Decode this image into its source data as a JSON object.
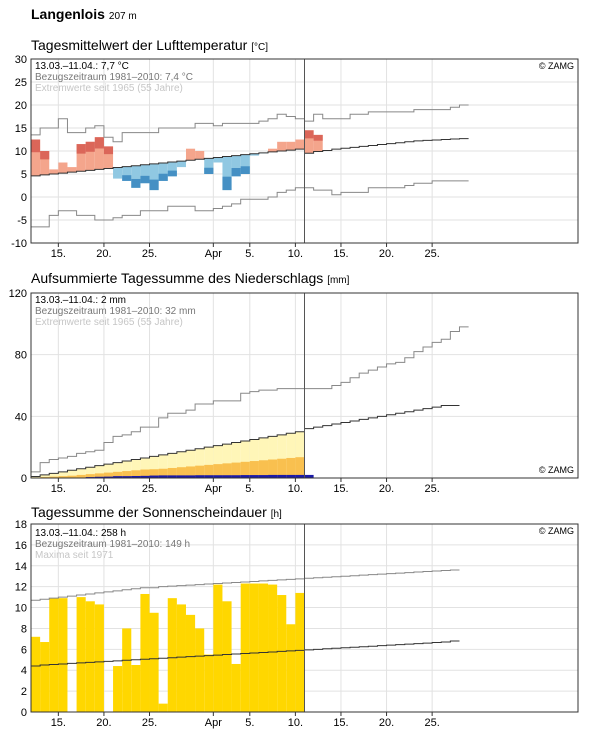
{
  "station": {
    "name": "Langenlois",
    "altitude": "207 m"
  },
  "chart_data": [
    {
      "type": "bar",
      "title": "Tagesmittelwert der Lufttemperatur",
      "unit": "[°C]",
      "copyright": "© ZAMG",
      "info": [
        "13.03.–11.04.: 7,7 °C",
        "Bezugszeitraum 1981–2010: 7,4 °C",
        "Extremwerte seit 1965 (55 Jahre)"
      ],
      "ylim": [
        -10,
        30
      ],
      "yticks": [
        -10,
        -5,
        0,
        5,
        10,
        15,
        20,
        25,
        30
      ],
      "xlim": [
        0,
        60
      ],
      "xticks": [
        {
          "d": 3,
          "label": "15."
        },
        {
          "d": 8,
          "label": "20."
        },
        {
          "d": 13,
          "label": "25."
        },
        {
          "d": 20,
          "label": "Apr"
        },
        {
          "d": 24,
          "label": "5."
        },
        {
          "d": 29,
          "label": "10."
        },
        {
          "d": 34,
          "label": "15."
        },
        {
          "d": 39,
          "label": "20."
        },
        {
          "d": 44,
          "label": "25."
        }
      ],
      "today_index": 30,
      "series": [
        {
          "role": "daily_mean",
          "values": [
            12.5,
            10,
            6,
            7.5,
            6.5,
            11.5,
            12,
            13,
            11,
            4,
            3.5,
            2,
            3,
            1.5,
            3.5,
            4.5,
            6.5,
            10.5,
            10,
            5,
            7.5,
            1.5,
            4.5,
            5,
            9,
            9.5,
            10.5,
            12,
            12,
            12.5,
            14.5,
            13.5
          ]
        },
        {
          "role": "normal",
          "values": [
            4.6,
            4.8,
            5.0,
            5.2,
            5.4,
            5.6,
            5.8,
            6.0,
            6.2,
            6.4,
            6.6,
            6.8,
            7.0,
            7.2,
            7.4,
            7.6,
            7.8,
            8.0,
            8.2,
            8.4,
            8.6,
            8.8,
            9.0,
            9.2,
            9.4,
            9.6,
            9.8,
            10.0,
            10.2,
            10.4,
            9.5,
            9.9,
            10.1,
            10.4,
            10.6,
            10.8,
            11.0,
            11.2,
            11.4,
            11.6,
            11.8,
            12.0,
            12.2,
            12.3,
            12.4,
            12.5,
            12.6,
            12.7
          ]
        },
        {
          "role": "extreme_max",
          "values": [
            13.5,
            15,
            15,
            17,
            14,
            14,
            15,
            15.5,
            13,
            12,
            14,
            14,
            14,
            14,
            15,
            15,
            15,
            15,
            16,
            16,
            15.5,
            16,
            16,
            16,
            16,
            16.5,
            17,
            18,
            17.5,
            17,
            16.5,
            18,
            17,
            17,
            17,
            18,
            18,
            18.5,
            18.5,
            18.5,
            18.5,
            18.5,
            19,
            19,
            19,
            19,
            19.5,
            20
          ]
        },
        {
          "role": "extreme_min",
          "values": [
            -6.5,
            -6.5,
            -4,
            -3,
            -3,
            -4,
            -4,
            -5,
            -5,
            -4.5,
            -4,
            -4,
            -3,
            -3,
            -3,
            -2,
            -2,
            -2,
            -3,
            -3,
            -2.5,
            -2,
            -1.5,
            -0.5,
            -0.5,
            -0.5,
            0,
            1,
            1.5,
            2,
            2,
            1.5,
            1.5,
            0.5,
            1,
            1,
            1,
            2,
            2,
            2,
            2,
            2.5,
            3,
            3,
            3.5,
            3.5,
            3.5,
            3.5
          ]
        }
      ],
      "colors": {
        "warm": "#f4a58c",
        "warm_extra": "#d65a50",
        "cold": "#90c8e2",
        "cold_extra": "#4590c4"
      }
    },
    {
      "type": "area",
      "title": "Aufsummierte Tagessumme des Niederschlags",
      "unit": "[mm]",
      "copyright": "© ZAMG",
      "info": [
        "13.03.–11.04.: 2 mm",
        "Bezugszeitraum 1981–2010: 32 mm",
        "Extremwerte seit 1965 (55 Jahre)"
      ],
      "ylim": [
        0,
        120
      ],
      "yticks": [
        0,
        40,
        80,
        120
      ],
      "xlim": [
        0,
        60
      ],
      "xticks": [
        {
          "d": 3,
          "label": "15."
        },
        {
          "d": 8,
          "label": "20."
        },
        {
          "d": 13,
          "label": "25."
        },
        {
          "d": 20,
          "label": "Apr"
        },
        {
          "d": 24,
          "label": "5."
        },
        {
          "d": 29,
          "label": "10."
        },
        {
          "d": 34,
          "label": "15."
        },
        {
          "d": 39,
          "label": "20."
        },
        {
          "d": 44,
          "label": "25."
        }
      ],
      "today_index": 30,
      "series": [
        {
          "role": "observed_cumulative",
          "values": [
            0,
            0,
            0,
            0,
            0.3,
            0.3,
            0.6,
            0.8,
            0.9,
            1.2,
            1.2,
            1.3,
            1.4,
            1.6,
            1.7,
            1.7,
            1.7,
            1.7,
            1.8,
            1.8,
            1.8,
            1.8,
            1.8,
            1.9,
            1.9,
            1.9,
            2,
            2,
            2,
            2,
            2
          ]
        },
        {
          "role": "normal_cumulative",
          "values": [
            1,
            2,
            3,
            4,
            5,
            6,
            7,
            8,
            9,
            10,
            11,
            12,
            13,
            14,
            15,
            16,
            17,
            18,
            19,
            20,
            21,
            22,
            23,
            24,
            25,
            26,
            27,
            28,
            29,
            30,
            32,
            33,
            34,
            35,
            36,
            37,
            38,
            39,
            40,
            41,
            42,
            43,
            44,
            45,
            46,
            47,
            47
          ]
        },
        {
          "role": "maximum_cumulative",
          "values": [
            4,
            10,
            12,
            13,
            14,
            16,
            17,
            18,
            23,
            27,
            28,
            30,
            33,
            33,
            39,
            42,
            42,
            44,
            48,
            48,
            50,
            50,
            50,
            55,
            56,
            57,
            57,
            58,
            58,
            58,
            58,
            58,
            58,
            60,
            62,
            65,
            68,
            70,
            72,
            74,
            75,
            78,
            82,
            85,
            88,
            90,
            95,
            98
          ]
        },
        {
          "role": "normal_band_inner",
          "values": [
            0.3,
            0.6,
            0.9,
            1.2,
            1.5,
            2,
            2.5,
            3,
            3.5,
            4,
            4.5,
            5,
            5.5,
            5.7,
            6,
            6.5,
            7,
            7.5,
            8,
            8.5,
            9,
            9.5,
            10,
            10.5,
            11,
            11.5,
            12,
            12.5,
            13,
            13.5,
            14
          ]
        }
      ],
      "colors": {
        "band_outer": "#fff6b8",
        "band_inner": "#f9c04f",
        "observed": "#1a1aa8"
      }
    },
    {
      "type": "bar",
      "title": "Tagessumme der Sonnenscheindauer",
      "unit": "[h]",
      "copyright": "© ZAMG",
      "info": [
        "13.03.–11.04.: 258 h",
        "Bezugszeitraum 1981–2010: 149 h",
        "Maxima seit 1971"
      ],
      "ylim": [
        0,
        18
      ],
      "yticks": [
        0,
        2,
        4,
        6,
        8,
        10,
        12,
        14,
        16,
        18
      ],
      "xlim": [
        0,
        60
      ],
      "xticks": [
        {
          "d": 3,
          "label": "15."
        },
        {
          "d": 8,
          "label": "20."
        },
        {
          "d": 13,
          "label": "25."
        },
        {
          "d": 20,
          "label": "Apr"
        },
        {
          "d": 24,
          "label": "5."
        },
        {
          "d": 29,
          "label": "10."
        },
        {
          "d": 34,
          "label": "15."
        },
        {
          "d": 39,
          "label": "20."
        },
        {
          "d": 44,
          "label": "25."
        }
      ],
      "today_index": 30,
      "series": [
        {
          "role": "sunshine_hours",
          "values": [
            7.2,
            6.7,
            10.9,
            10.9,
            0,
            11,
            10.6,
            10.3,
            0,
            4.4,
            8,
            4.5,
            11.3,
            9.5,
            0.8,
            10.9,
            10.3,
            9.3,
            8,
            5.5,
            12.2,
            10.6,
            4.6,
            12.3,
            12.3,
            12.3,
            12.2,
            11.2,
            8.4,
            11.4
          ]
        },
        {
          "role": "normal",
          "values": [
            4.4,
            4.5,
            4.55,
            4.6,
            4.65,
            4.7,
            4.75,
            4.8,
            4.85,
            4.9,
            4.95,
            5,
            5.05,
            5.1,
            5.15,
            5.2,
            5.25,
            5.3,
            5.35,
            5.4,
            5.45,
            5.5,
            5.55,
            5.6,
            5.65,
            5.7,
            5.75,
            5.8,
            5.85,
            5.9,
            5.95,
            6,
            6.05,
            6.1,
            6.15,
            6.2,
            6.25,
            6.3,
            6.35,
            6.4,
            6.45,
            6.5,
            6.55,
            6.6,
            6.65,
            6.7,
            6.8
          ]
        },
        {
          "role": "maximum",
          "values": [
            10.7,
            10.8,
            10.9,
            11,
            11.1,
            11.2,
            11.3,
            11.4,
            11.5,
            11.6,
            11.7,
            11.8,
            11.9,
            11.9,
            12,
            12.05,
            12.1,
            12.15,
            12.2,
            12.25,
            12.3,
            12.35,
            12.4,
            12.45,
            12.5,
            12.55,
            12.6,
            12.65,
            12.7,
            12.75,
            12.8,
            12.85,
            12.9,
            12.95,
            13,
            13.05,
            13.1,
            13.15,
            13.2,
            13.25,
            13.3,
            13.35,
            13.4,
            13.45,
            13.5,
            13.55,
            13.6
          ]
        }
      ],
      "colors": {
        "bar": "#ffd700"
      }
    }
  ]
}
